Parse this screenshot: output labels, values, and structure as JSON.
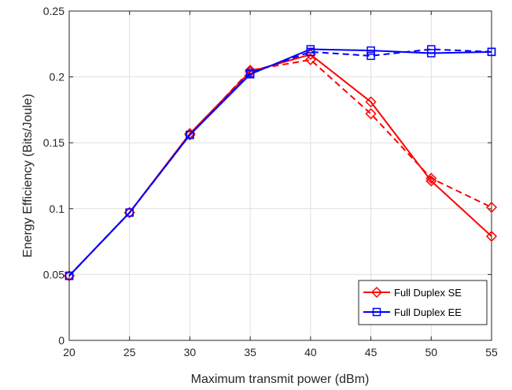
{
  "chart_data": {
    "type": "line",
    "xlabel": "Maximum transmit power (dBm)",
    "ylabel": "Energy Efficiency (Bits/Joule)",
    "xlim": [
      20,
      55
    ],
    "ylim": [
      0,
      0.25
    ],
    "xticks": [
      "20",
      "25",
      "30",
      "35",
      "40",
      "45",
      "50",
      "55"
    ],
    "yticks": [
      "0",
      "0.05",
      "0.1",
      "0.15",
      "0.2",
      "0.25"
    ],
    "grid": true,
    "legend_position": "bottom-right",
    "x": [
      20,
      25,
      30,
      35,
      40,
      45,
      50,
      55
    ],
    "series": [
      {
        "name": "Full Duplex SE",
        "color": "#ff0000",
        "marker": "diamond",
        "style": "solid",
        "values": [
          0.049,
          0.097,
          0.157,
          0.204,
          0.217,
          0.181,
          0.121,
          0.079
        ]
      },
      {
        "name": "Full Duplex SE",
        "color": "#ff0000",
        "marker": "diamond",
        "style": "dashed",
        "in_legend": false,
        "values": [
          0.049,
          0.097,
          0.156,
          0.205,
          0.213,
          0.172,
          0.123,
          0.101
        ]
      },
      {
        "name": "Full Duplex EE",
        "color": "#0000ff",
        "marker": "square",
        "style": "solid",
        "values": [
          0.049,
          0.097,
          0.156,
          0.202,
          0.221,
          0.22,
          0.218,
          0.219
        ]
      },
      {
        "name": "Full Duplex EE",
        "color": "#0000ff",
        "marker": "square",
        "style": "dashed",
        "in_legend": false,
        "values": [
          0.049,
          0.097,
          0.156,
          0.203,
          0.219,
          0.216,
          0.221,
          0.219
        ]
      }
    ]
  }
}
